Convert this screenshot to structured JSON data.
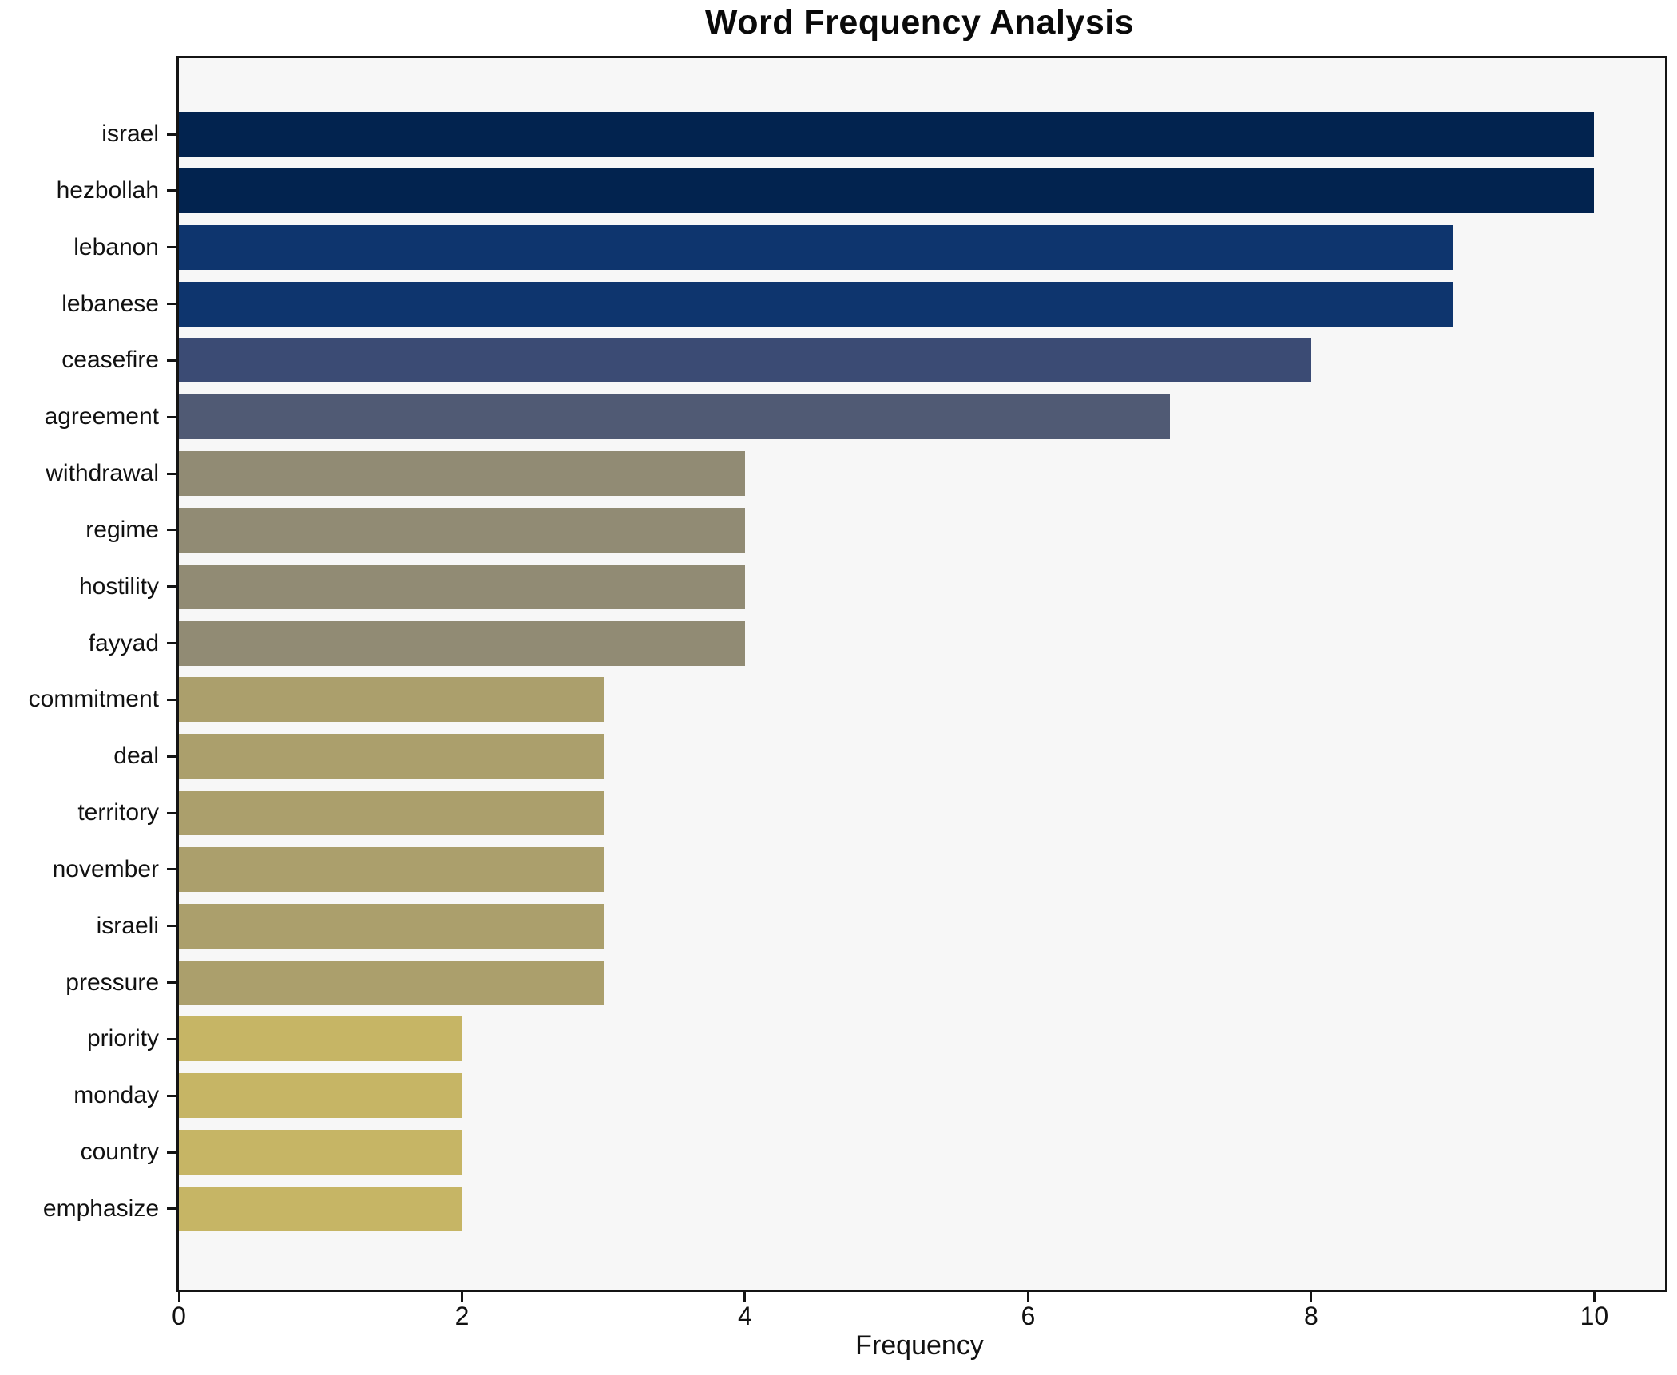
{
  "figure": {
    "background": "#ffffff",
    "plot_background": "#f7f7f7",
    "spine_color": "#141414"
  },
  "chart_data": {
    "type": "bar",
    "orientation": "horizontal",
    "title": "Word Frequency Analysis",
    "xlabel": "Frequency",
    "ylabel": "",
    "categories": [
      "israel",
      "hezbollah",
      "lebanon",
      "lebanese",
      "ceasefire",
      "agreement",
      "withdrawal",
      "regime",
      "hostility",
      "fayyad",
      "commitment",
      "deal",
      "territory",
      "november",
      "israeli",
      "pressure",
      "priority",
      "monday",
      "country",
      "emphasize"
    ],
    "values": [
      10,
      10,
      9,
      9,
      8,
      7,
      4,
      4,
      4,
      4,
      3,
      3,
      3,
      3,
      3,
      3,
      2,
      2,
      2,
      2
    ],
    "bar_colors": [
      "#02234f",
      "#02234f",
      "#0e356e",
      "#0e356e",
      "#3b4b74",
      "#505a74",
      "#918b74",
      "#918b74",
      "#918b74",
      "#918b74",
      "#ab9f6c",
      "#ab9f6c",
      "#ab9f6c",
      "#ab9f6c",
      "#ab9f6c",
      "#ab9f6c",
      "#c6b565",
      "#c6b565",
      "#c6b565",
      "#c6b565"
    ],
    "xlim": [
      0,
      10.5
    ],
    "xticks": [
      0,
      2,
      4,
      6,
      8,
      10
    ],
    "grid": false,
    "legend": null
  }
}
